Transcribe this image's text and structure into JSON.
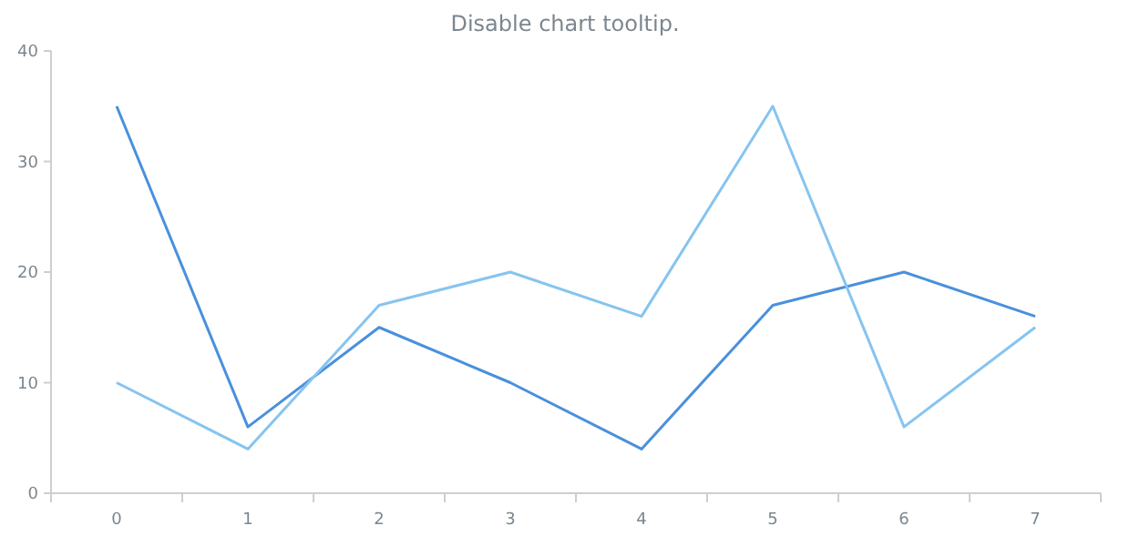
{
  "chart_data": {
    "type": "line",
    "title": "Disable chart tooltip.",
    "categories": [
      "0",
      "1",
      "2",
      "3",
      "4",
      "5",
      "6",
      "7"
    ],
    "series": [
      {
        "color": "#4a90dc",
        "values": [
          35,
          6,
          15,
          10,
          4,
          17,
          20,
          16
        ]
      },
      {
        "color": "#86c4f0",
        "values": [
          10,
          4,
          17,
          20,
          16,
          35,
          6,
          15
        ]
      }
    ],
    "ylim": [
      0,
      40
    ],
    "yticks": [
      0,
      10,
      20,
      30,
      40
    ],
    "grid": false,
    "marker": "none",
    "line_style": "solid"
  }
}
